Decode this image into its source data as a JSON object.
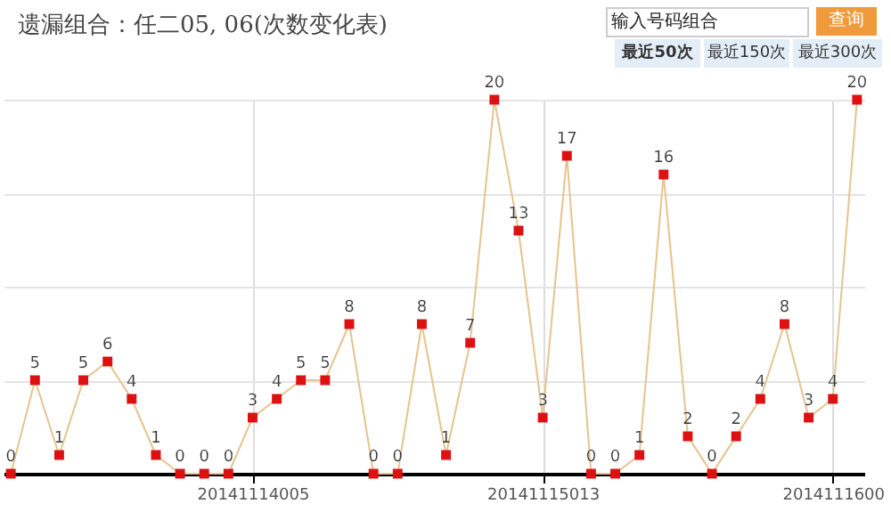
{
  "chart_data": {
    "type": "line",
    "title": "遗漏组合：任二05, 06(次数变化表)",
    "annotations": [
      "输入号码组合",
      "查询",
      "最近50次",
      "最近150次",
      "最近300次"
    ],
    "categories": [
      null,
      null,
      null,
      null,
      null,
      null,
      null,
      null,
      null,
      null,
      "20141114005",
      null,
      null,
      null,
      null,
      null,
      null,
      null,
      null,
      null,
      null,
      null,
      "20141115013",
      null,
      null,
      null,
      null,
      null,
      null,
      null,
      null,
      null,
      null,
      null,
      "2014111600",
      null
    ],
    "series": [
      {
        "color": "#e6c38e",
        "values": [
          0,
          5,
          1,
          5,
          6,
          4,
          1,
          0,
          0,
          0,
          3,
          4,
          5,
          5,
          8,
          0,
          0,
          8,
          1,
          7,
          20,
          13,
          3,
          17,
          0,
          0,
          1,
          16,
          2,
          0,
          2,
          4,
          8,
          3,
          4,
          20
        ]
      }
    ],
    "tick_labels": "x",
    "grid": true,
    "marker": "square",
    "data_labels": true
  }
}
